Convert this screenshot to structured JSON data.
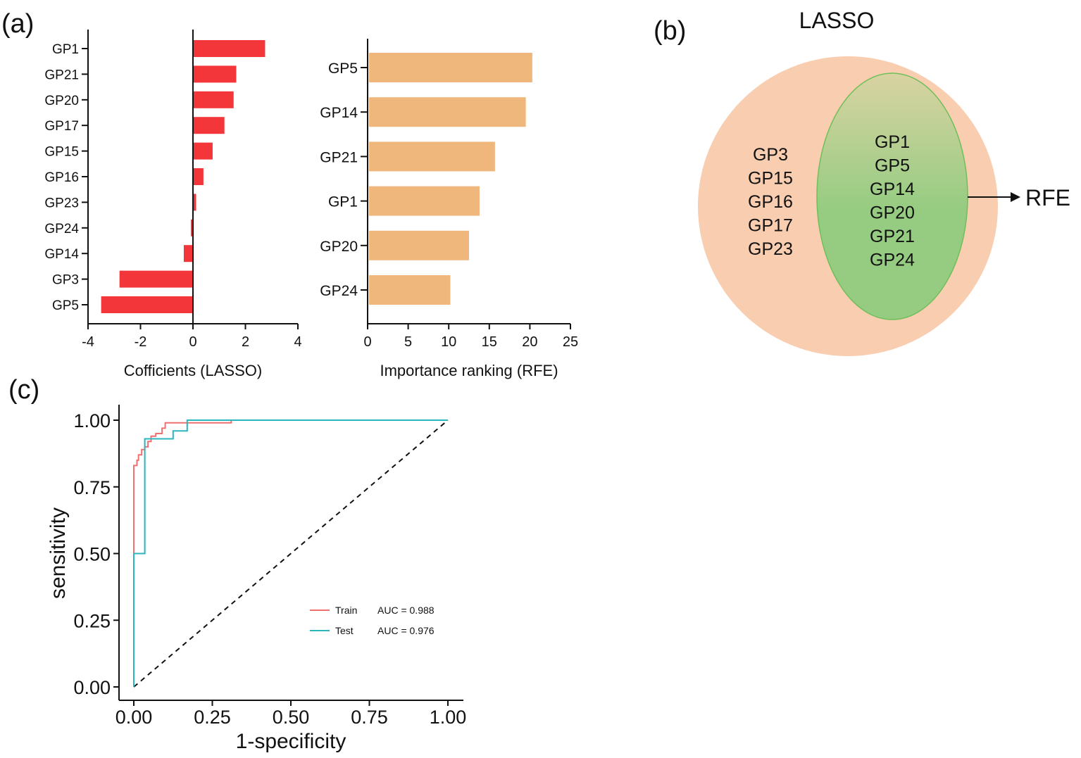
{
  "panels": {
    "a": "(a)",
    "b": "(b)",
    "c": "(c)"
  },
  "venn": {
    "outer_label": "LASSO",
    "inner_label": "RFE",
    "lasso_only": [
      "GP3",
      "GP15",
      "GP16",
      "GP17",
      "GP23"
    ],
    "shared": [
      "GP1",
      "GP5",
      "GP14",
      "GP20",
      "GP21",
      "GP24"
    ],
    "outer_color": "#f9cdb0",
    "inner_color_top": "#d9d3a2",
    "inner_color_bottom": "#96cc82"
  },
  "chart_data": [
    {
      "id": "lasso",
      "type": "bar",
      "orientation": "horizontal",
      "categories": [
        "GP1",
        "GP21",
        "GP20",
        "GP17",
        "GP15",
        "GP16",
        "GP23",
        "GP24",
        "GP14",
        "GP3",
        "GP5"
      ],
      "values": [
        2.75,
        1.65,
        1.55,
        1.2,
        0.75,
        0.4,
        0.12,
        -0.08,
        -0.35,
        -2.8,
        -3.5
      ],
      "xlabel": "Cofficients (LASSO)",
      "xlim": [
        -4,
        4
      ],
      "xticks": [
        -4,
        -2,
        0,
        2,
        4
      ],
      "color": "#f2363a"
    },
    {
      "id": "rfe",
      "type": "bar",
      "orientation": "horizontal",
      "categories": [
        "GP5",
        "GP14",
        "GP21",
        "GP1",
        "GP20",
        "GP24"
      ],
      "values": [
        20.3,
        19.5,
        15.7,
        13.8,
        12.5,
        10.2
      ],
      "xlabel": "Importance ranking (RFE)",
      "xlim": [
        0,
        25
      ],
      "xticks": [
        0,
        5,
        10,
        15,
        20,
        25
      ],
      "color": "#f0b77c"
    },
    {
      "id": "roc",
      "type": "line",
      "xlabel": "1-specificity",
      "ylabel": "sensitivity",
      "xlim": [
        0,
        1
      ],
      "ylim": [
        0,
        1
      ],
      "xticks": [
        "0.00",
        "0.25",
        "0.50",
        "0.75",
        "1.00"
      ],
      "yticks": [
        "0.00",
        "0.25",
        "0.50",
        "0.75",
        "1.00"
      ],
      "series": [
        {
          "name": "Train",
          "auc_label": "AUC = 0.988",
          "color": "#f07070",
          "points": [
            [
              0,
              0
            ],
            [
              0,
              0.5
            ],
            [
              0,
              0.83
            ],
            [
              0.01,
              0.83
            ],
            [
              0.01,
              0.85
            ],
            [
              0.015,
              0.85
            ],
            [
              0.015,
              0.87
            ],
            [
              0.025,
              0.87
            ],
            [
              0.025,
              0.89
            ],
            [
              0.035,
              0.89
            ],
            [
              0.035,
              0.9
            ],
            [
              0.045,
              0.9
            ],
            [
              0.045,
              0.92
            ],
            [
              0.055,
              0.92
            ],
            [
              0.055,
              0.94
            ],
            [
              0.07,
              0.94
            ],
            [
              0.07,
              0.95
            ],
            [
              0.09,
              0.95
            ],
            [
              0.09,
              0.97
            ],
            [
              0.1,
              0.97
            ],
            [
              0.1,
              0.99
            ],
            [
              0.31,
              0.99
            ],
            [
              0.31,
              1
            ],
            [
              1,
              1
            ]
          ]
        },
        {
          "name": "Test",
          "auc_label": "AUC = 0.976",
          "color": "#2bb5bd",
          "points": [
            [
              0,
              0
            ],
            [
              0,
              0.5
            ],
            [
              0.035,
              0.5
            ],
            [
              0.035,
              0.93
            ],
            [
              0.125,
              0.93
            ],
            [
              0.125,
              0.96
            ],
            [
              0.17,
              0.96
            ],
            [
              0.17,
              1
            ],
            [
              1,
              1
            ]
          ]
        }
      ],
      "reference_line": [
        [
          0,
          0
        ],
        [
          1,
          1
        ]
      ]
    }
  ]
}
